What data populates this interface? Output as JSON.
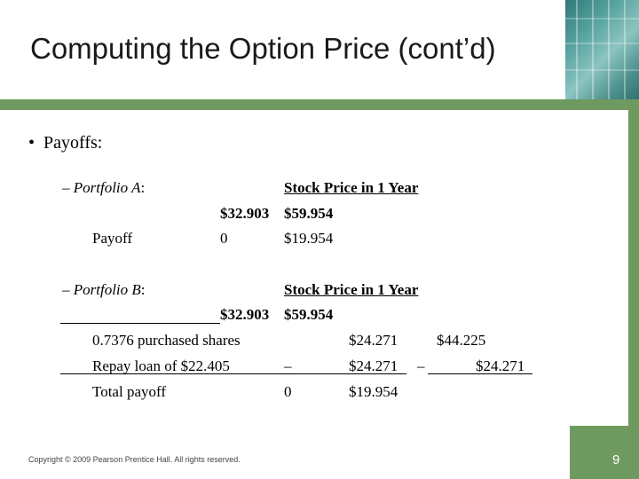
{
  "slide": {
    "title": "Computing the Option Price (cont’d)",
    "bullet": "Payoffs:",
    "footer": "Copyright © 2009 Pearson Prentice Hall. All rights reserved.",
    "page_number": "9"
  },
  "portfolio_a": {
    "dash": "–",
    "label": "Portfolio A",
    "colon": ":",
    "header": "Stock Price in 1 Year",
    "price_low": "$32.903",
    "price_high": "$59.954",
    "row_label": "Payoff",
    "payoff_low": "0",
    "payoff_high": "$19.954"
  },
  "portfolio_b": {
    "dash": "–",
    "label": "Portfolio B",
    "colon": ":",
    "header": "Stock Price in 1 Year",
    "price_low": "$32.903",
    "price_high": "$59.954",
    "rows": [
      {
        "label": "0.7376 purchased shares",
        "sign_low": "",
        "low": "$24.271",
        "sign_high": "",
        "high": "$44.225"
      },
      {
        "label": "Repay loan of $22.405",
        "sign_low": "–",
        "low": "$24.271",
        "sign_high": "–",
        "high": "$24.271"
      },
      {
        "label": "Total payoff",
        "sign_low": "0",
        "low": "$19.954",
        "sign_high": "",
        "high": ""
      }
    ]
  },
  "colors": {
    "accent_green": "#6f9a5f",
    "photo_teal": "#58a3a0"
  }
}
